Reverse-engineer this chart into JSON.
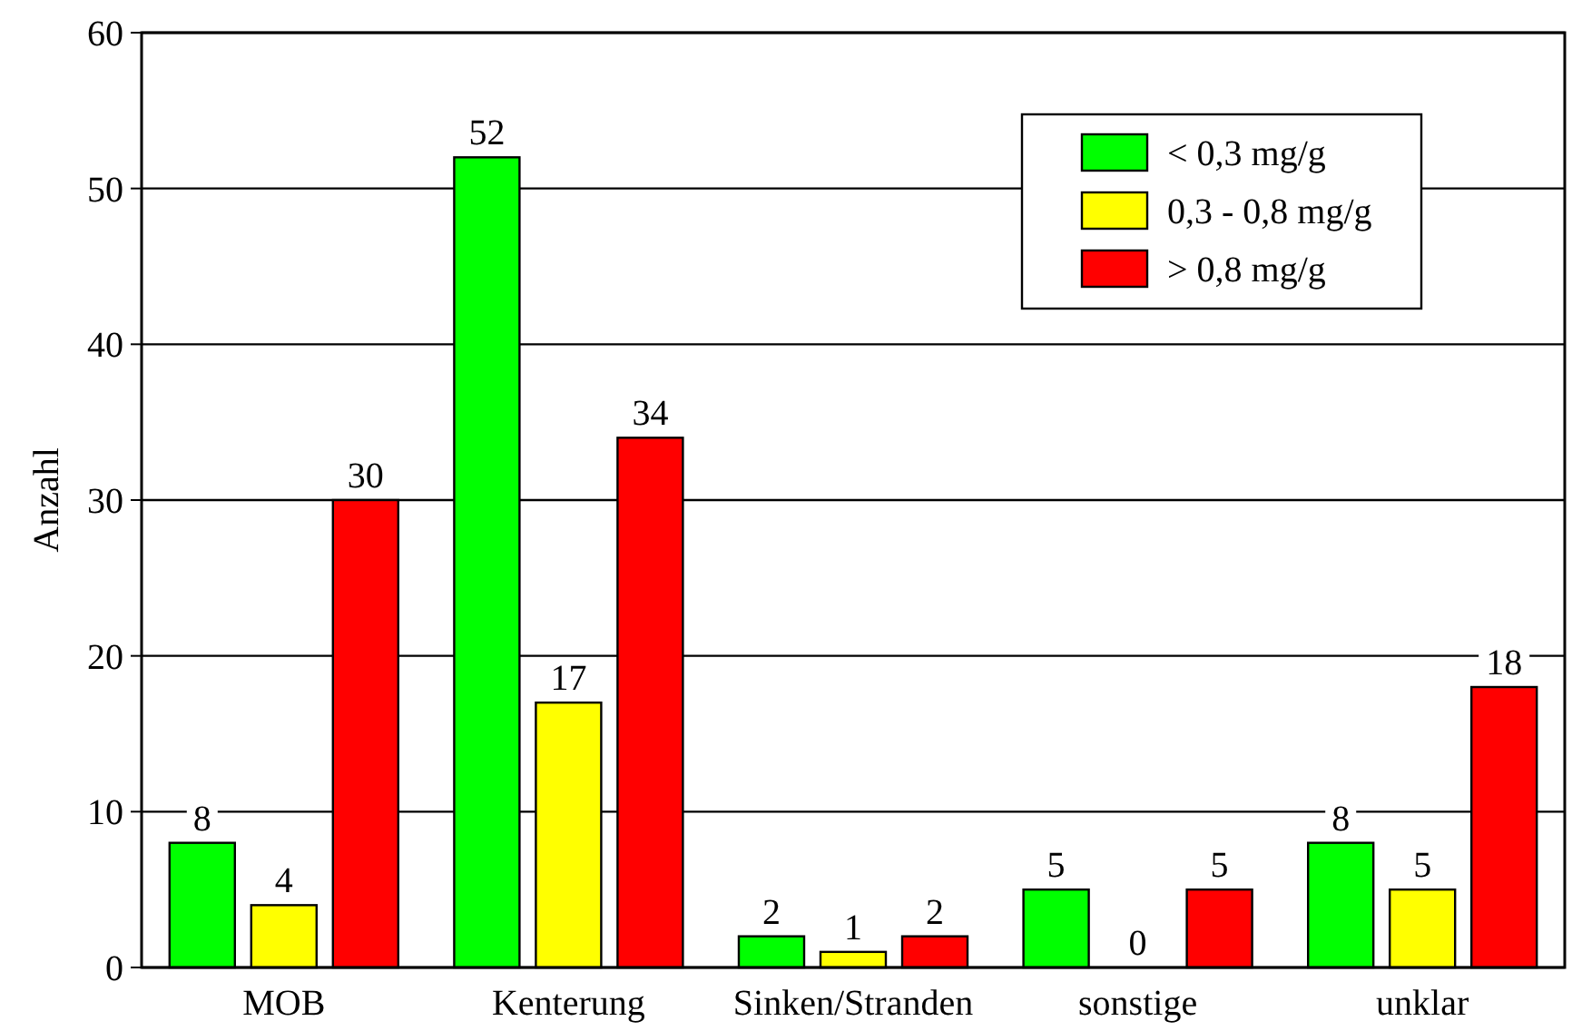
{
  "chart_data": {
    "type": "bar",
    "ylabel": "Anzahl",
    "categories": [
      "MOB",
      "Kenterung",
      "Sinken/Stranden",
      "sonstige",
      "unklar"
    ],
    "series": [
      {
        "name": "< 0,3 mg/g",
        "color": "#00ff00",
        "values": [
          8,
          52,
          2,
          5,
          8
        ]
      },
      {
        "name": "0,3 - 0,8 mg/g",
        "color": "#ffff00",
        "values": [
          4,
          17,
          1,
          0,
          5
        ]
      },
      {
        "name": "> 0,8 mg/g",
        "color": "#ff0000",
        "values": [
          30,
          34,
          2,
          5,
          18
        ]
      }
    ],
    "ylim": [
      0,
      60
    ],
    "yticks": [
      0,
      10,
      20,
      30,
      40,
      50,
      60
    ],
    "grid": "y",
    "legend": "top right",
    "data_labels": true
  }
}
